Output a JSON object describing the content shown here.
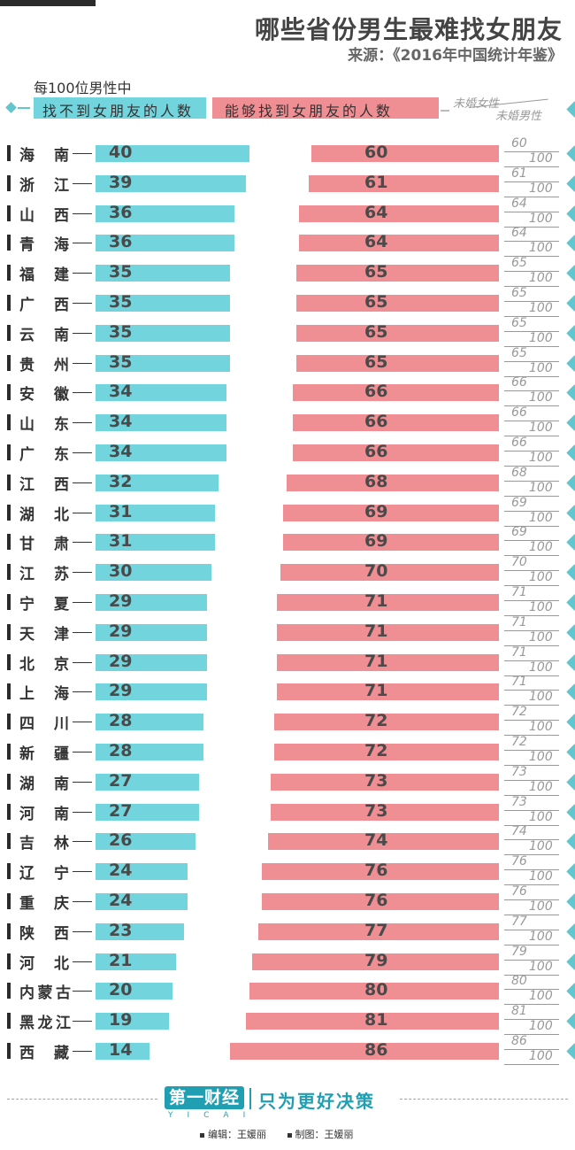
{
  "title": "哪些省份男生最难找女朋友",
  "source": "来源：《2016年中国统计年鉴》",
  "legend": {
    "per100": "每100位男性中",
    "cannot_find": "找不到女朋友的人数",
    "can_find": "能够找到女朋友的人数",
    "unmarried_female": "未婚女性",
    "unmarried_male": "未婚男性"
  },
  "chart_data": {
    "type": "bar",
    "categories": [
      "海南",
      "浙江",
      "山西",
      "青海",
      "福建",
      "广西",
      "云南",
      "贵州",
      "安徽",
      "山东",
      "广东",
      "江西",
      "湖北",
      "甘肃",
      "江苏",
      "宁夏",
      "天津",
      "北京",
      "上海",
      "四川",
      "新疆",
      "湖南",
      "河南",
      "吉林",
      "辽宁",
      "重庆",
      "陕西",
      "河北",
      "内蒙古",
      "黑龙江",
      "西藏"
    ],
    "series": [
      {
        "name": "找不到女朋友的人数",
        "values": [
          40,
          39,
          36,
          36,
          35,
          35,
          35,
          35,
          34,
          34,
          34,
          32,
          31,
          31,
          30,
          29,
          29,
          29,
          29,
          28,
          28,
          27,
          27,
          26,
          24,
          24,
          23,
          21,
          20,
          19,
          14
        ]
      },
      {
        "name": "能够找到女朋友的人数",
        "values": [
          60,
          61,
          64,
          64,
          65,
          65,
          65,
          65,
          66,
          66,
          66,
          68,
          69,
          69,
          70,
          71,
          71,
          71,
          71,
          72,
          72,
          73,
          73,
          74,
          76,
          76,
          77,
          79,
          80,
          81,
          86
        ]
      }
    ],
    "ratio_denominator": "100",
    "colors": {
      "cannot_find": "#72d4dd",
      "can_find": "#ef8e93"
    }
  },
  "footer": {
    "logo": "第一财经",
    "logo_sub": "YICAI",
    "slogan": "只为更好决策",
    "editor": "编辑：王媛丽",
    "designer": "制图：王媛丽"
  }
}
